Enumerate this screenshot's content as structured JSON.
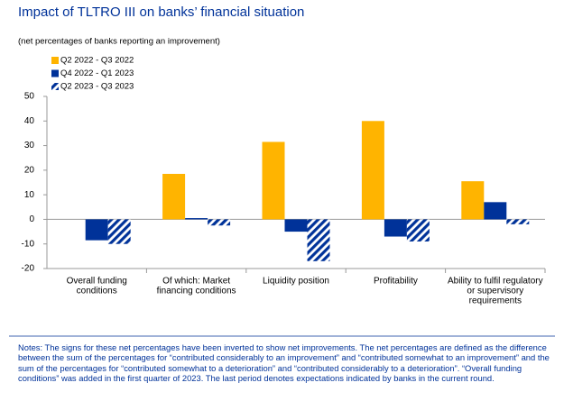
{
  "chart_data": {
    "type": "bar",
    "title": "Impact of TLTRO III on banks’ financial situation",
    "subtitle": "(net percentages of banks reporting an improvement)",
    "categories": [
      [
        "Overall funding",
        "conditions"
      ],
      [
        "Of which: Market",
        "financing conditions"
      ],
      [
        "Liquidity position"
      ],
      [
        "Profitability"
      ],
      [
        "Ability to fulfil regulatory",
        "or supervisory",
        "requirements"
      ]
    ],
    "series": [
      {
        "name": "Q2 2022 - Q3 2022",
        "color": "#FFB400",
        "hatch": false,
        "values": [
          null,
          18.5,
          31.5,
          40,
          15.5
        ]
      },
      {
        "name": "Q4 2022 - Q1 2023",
        "color": "#003299",
        "hatch": false,
        "values": [
          -8.5,
          0.5,
          -5,
          -7,
          7
        ]
      },
      {
        "name": "Q2 2023 - Q3 2023",
        "color": "#003299",
        "hatch": true,
        "values": [
          -10,
          -2.5,
          -17,
          -9,
          -2
        ]
      }
    ],
    "ylim": [
      -20,
      50
    ],
    "yticks": [
      -20,
      -10,
      0,
      10,
      20,
      30,
      40,
      50
    ],
    "grid": false,
    "legend": "top-left",
    "notes": "Notes: The signs for these net percentages have been inverted to show net improvements. The net percentages are defined as the difference between the sum of the percentages for “contributed considerably to an improvement” and “contributed somewhat to an improvement” and the sum of the percentages for “contributed somewhat to a deterioration” and “contributed considerably to a deterioration”. “Overall funding conditions” was added in the first quarter of 2023. The last period denotes expectations indicated by banks in the current round."
  }
}
